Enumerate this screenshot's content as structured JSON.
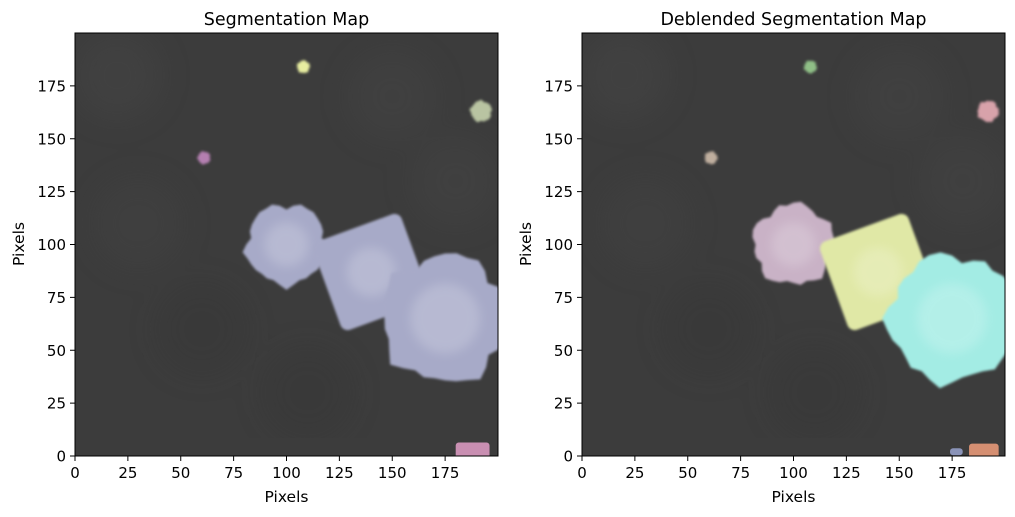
{
  "chart_data": [
    {
      "type": "heatmap",
      "title": "Segmentation Map",
      "xlabel": "Pixels",
      "ylabel": "Pixels",
      "xlim": [
        0,
        200
      ],
      "ylim": [
        0,
        200
      ],
      "x_ticks": [
        0,
        25,
        50,
        75,
        100,
        125,
        150,
        175
      ],
      "y_ticks": [
        0,
        25,
        50,
        75,
        100,
        125,
        150,
        175
      ],
      "grid": false,
      "background_color": "#3c3c3c",
      "segments": [
        {
          "center": [
            100,
            100
          ],
          "radius": 19,
          "color": "#a7aac8",
          "shape": "blob"
        },
        {
          "center": [
            140,
            87
          ],
          "radius": 21,
          "color": "#a7aac8",
          "shape": "tilted-square"
        },
        {
          "center": [
            175,
            65
          ],
          "radius": 30,
          "color": "#a7aac8",
          "shape": "blob"
        },
        {
          "center": [
            108,
            184
          ],
          "radius": 3,
          "color": "#e8eea0",
          "shape": "blob"
        },
        {
          "center": [
            192,
            163
          ],
          "radius": 5,
          "color": "#b9c4a2",
          "shape": "blob"
        },
        {
          "center": [
            61,
            141
          ],
          "radius": 3,
          "color": "#b47fb0",
          "shape": "blob"
        },
        {
          "center": [
            188,
            2
          ],
          "radius": 8,
          "color": "#c98fb2",
          "shape": "edge-strip"
        }
      ]
    },
    {
      "type": "heatmap",
      "title": "Deblended Segmentation Map",
      "xlabel": "Pixels",
      "ylabel": "Pixels",
      "xlim": [
        0,
        200
      ],
      "ylim": [
        0,
        200
      ],
      "x_ticks": [
        0,
        25,
        50,
        75,
        100,
        125,
        150,
        175
      ],
      "y_ticks": [
        0,
        25,
        50,
        75,
        100,
        125,
        150,
        175
      ],
      "grid": false,
      "background_color": "#3c3c3c",
      "segments": [
        {
          "center": [
            100,
            100
          ],
          "radius": 19,
          "color": "#c9b2c6",
          "shape": "blob"
        },
        {
          "center": [
            140,
            87
          ],
          "radius": 21,
          "color": "#e0e8a6",
          "shape": "tilted-square"
        },
        {
          "center": [
            175,
            65
          ],
          "radius": 30,
          "color": "#a3ece4",
          "shape": "blob"
        },
        {
          "center": [
            108,
            184
          ],
          "radius": 3,
          "color": "#8fbf86",
          "shape": "blob"
        },
        {
          "center": [
            192,
            163
          ],
          "radius": 5,
          "color": "#d8a2aa",
          "shape": "blob"
        },
        {
          "center": [
            61,
            141
          ],
          "radius": 3,
          "color": "#bfae9e",
          "shape": "blob"
        },
        {
          "center": [
            190,
            2
          ],
          "radius": 7,
          "color": "#d58f72",
          "shape": "edge-strip"
        },
        {
          "center": [
            177,
            2
          ],
          "radius": 3,
          "color": "#8a93b8",
          "shape": "edge-strip"
        }
      ]
    }
  ]
}
